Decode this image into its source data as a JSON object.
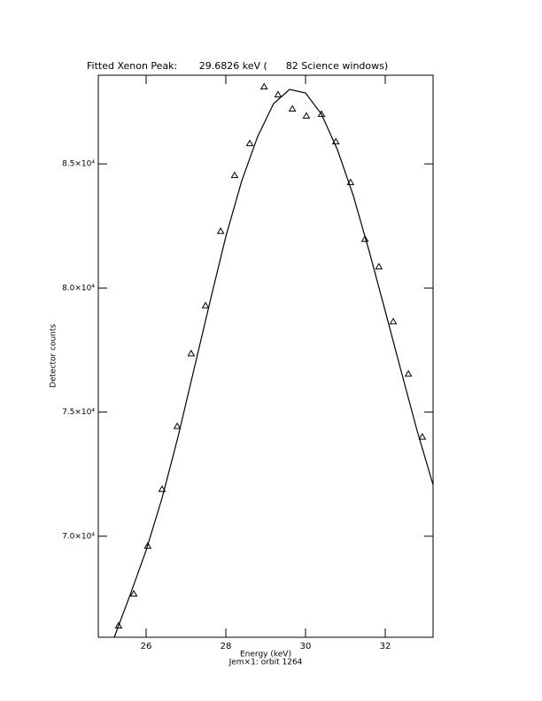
{
  "chart_data": {
    "type": "line",
    "title": "Fitted Xenon Peak:       29.6826 keV (      82 Science windows)",
    "x_label": "Energy (keV)",
    "subtitle": "Jem×1: orbit 1264",
    "y_label": "Detector counts",
    "xlim": [
      24.8,
      33.2
    ],
    "xticks": [
      26,
      28,
      30,
      32
    ],
    "ylim": [
      65929,
      88571
    ],
    "yticks": [
      {
        "value": 70000,
        "label": "7.0×10⁴"
      },
      {
        "value": 75000,
        "label": "7.5×10⁴"
      },
      {
        "value": 80000,
        "label": "8.0×10⁴"
      },
      {
        "value": 85000,
        "label": "8.5×10⁴"
      }
    ],
    "series": [
      {
        "marker": "triangle",
        "color": "#000000",
        "x": [
          25.31,
          25.69,
          26.04,
          26.4,
          26.78,
          27.13,
          27.49,
          27.87,
          28.22,
          28.6,
          28.96,
          29.31,
          29.67,
          30.02,
          30.4,
          30.76,
          31.13,
          31.49,
          31.84,
          32.2,
          32.58,
          32.93
        ],
        "values": [
          66393,
          67679,
          69607,
          71893,
          74429,
          77357,
          79286,
          82286,
          84536,
          85821,
          88107,
          87786,
          87214,
          86929,
          87000,
          85893,
          84250,
          81964,
          80857,
          78643,
          76536,
          74000
        ]
      },
      {
        "marker": "none",
        "color": "#000000",
        "x": [
          25.2,
          25.6,
          26.0,
          26.4,
          26.8,
          27.2,
          27.6,
          28.0,
          28.4,
          28.8,
          29.2,
          29.6,
          30.0,
          30.4,
          30.8,
          31.2,
          31.6,
          32.0,
          32.4,
          32.8,
          33.2
        ],
        "values": [
          65929,
          67643,
          69429,
          71536,
          74000,
          76714,
          79429,
          82071,
          84321,
          86107,
          87429,
          88000,
          87857,
          87000,
          85571,
          83714,
          81464,
          79071,
          76643,
          74250,
          72071
        ]
      }
    ]
  }
}
